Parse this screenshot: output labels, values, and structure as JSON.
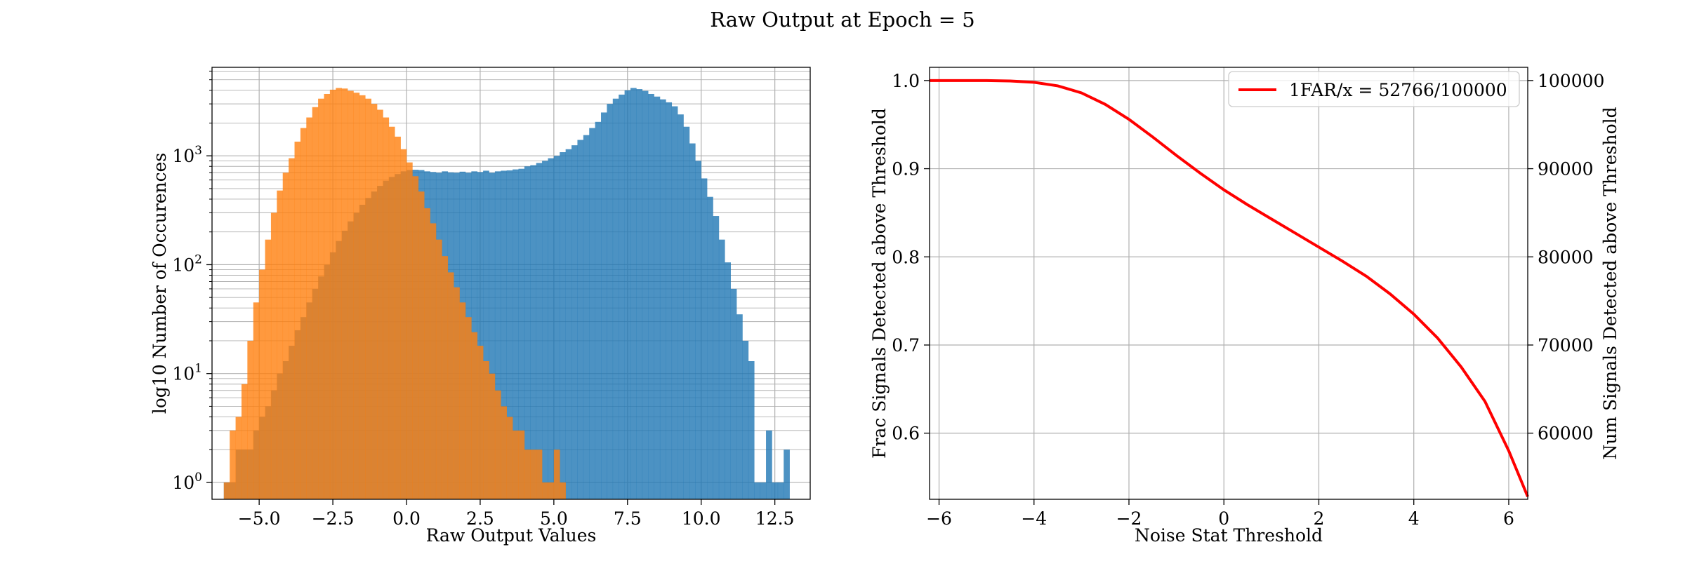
{
  "figure": {
    "title": "Raw Output at Epoch = 5"
  },
  "colors": {
    "blue": "#1f77b4",
    "orange": "#ff7f0e",
    "red": "#ff0000",
    "grid": "#b0b0b0"
  },
  "chart_data": [
    {
      "type": "histogram",
      "xlabel": "Raw Output Values",
      "ylabel": "log10 Number of Occurences",
      "xlim": [
        -6.6,
        13.7
      ],
      "ylim": [
        0.7,
        6500
      ],
      "yscale": "log",
      "grid": true,
      "xticks": [
        -5,
        -2.5,
        0,
        2.5,
        5,
        7.5,
        10,
        12.5
      ],
      "xtick_labels": [
        "−5.0",
        "−2.5",
        "0.0",
        "2.5",
        "5.0",
        "7.5",
        "10.0",
        "12.5"
      ],
      "yticks": [
        1,
        10,
        100,
        1000
      ],
      "ytick_labels": [
        {
          "base": "10",
          "exp": "0"
        },
        {
          "base": "10",
          "exp": "1"
        },
        {
          "base": "10",
          "exp": "2"
        },
        {
          "base": "10",
          "exp": "3"
        }
      ],
      "bin_width": 0.2,
      "series": [
        {
          "color": "#1f77b4",
          "alpha": 0.8,
          "bins": [
            [
              -6.2,
              1
            ],
            [
              -6.0,
              1
            ],
            [
              -5.8,
              2
            ],
            [
              -5.6,
              2
            ],
            [
              -5.4,
              2
            ],
            [
              -5.2,
              3
            ],
            [
              -5.0,
              4
            ],
            [
              -4.8,
              5
            ],
            [
              -4.6,
              7
            ],
            [
              -4.4,
              10
            ],
            [
              -4.2,
              13
            ],
            [
              -4.0,
              18
            ],
            [
              -3.8,
              25
            ],
            [
              -3.6,
              33
            ],
            [
              -3.4,
              45
            ],
            [
              -3.2,
              60
            ],
            [
              -3.0,
              78
            ],
            [
              -2.8,
              100
            ],
            [
              -2.6,
              130
            ],
            [
              -2.4,
              165
            ],
            [
              -2.2,
              205
            ],
            [
              -2.0,
              250
            ],
            [
              -1.8,
              300
            ],
            [
              -1.6,
              355
            ],
            [
              -1.4,
              410
            ],
            [
              -1.2,
              470
            ],
            [
              -1.0,
              530
            ],
            [
              -0.8,
              590
            ],
            [
              -0.6,
              640
            ],
            [
              -0.4,
              680
            ],
            [
              -0.2,
              720
            ],
            [
              0.0,
              740
            ],
            [
              0.2,
              745
            ],
            [
              0.4,
              740
            ],
            [
              0.6,
              720
            ],
            [
              0.8,
              710
            ],
            [
              1.0,
              700
            ],
            [
              1.2,
              720
            ],
            [
              1.4,
              705
            ],
            [
              1.6,
              700
            ],
            [
              1.8,
              715
            ],
            [
              2.0,
              700
            ],
            [
              2.2,
              720
            ],
            [
              2.4,
              710
            ],
            [
              2.6,
              730
            ],
            [
              2.8,
              700
            ],
            [
              3.0,
              720
            ],
            [
              3.2,
              730
            ],
            [
              3.4,
              735
            ],
            [
              3.6,
              750
            ],
            [
              3.8,
              760
            ],
            [
              4.0,
              800
            ],
            [
              4.2,
              820
            ],
            [
              4.4,
              860
            ],
            [
              4.6,
              900
            ],
            [
              4.8,
              950
            ],
            [
              5.0,
              1000
            ],
            [
              5.2,
              1080
            ],
            [
              5.4,
              1150
            ],
            [
              5.6,
              1250
            ],
            [
              5.8,
              1400
            ],
            [
              6.0,
              1550
            ],
            [
              6.2,
              1800
            ],
            [
              6.4,
              2050
            ],
            [
              6.6,
              2500
            ],
            [
              6.8,
              3000
            ],
            [
              7.0,
              3350
            ],
            [
              7.2,
              3650
            ],
            [
              7.4,
              4000
            ],
            [
              7.6,
              4200
            ],
            [
              7.8,
              4100
            ],
            [
              8.0,
              3950
            ],
            [
              8.2,
              3700
            ],
            [
              8.4,
              3500
            ],
            [
              8.6,
              3300
            ],
            [
              8.8,
              3100
            ],
            [
              9.0,
              2850
            ],
            [
              9.2,
              2400
            ],
            [
              9.4,
              1850
            ],
            [
              9.6,
              1300
            ],
            [
              9.8,
              900
            ],
            [
              10.0,
              620
            ],
            [
              10.2,
              420
            ],
            [
              10.4,
              280
            ],
            [
              10.6,
              170
            ],
            [
              10.8,
              105
            ],
            [
              11.0,
              60
            ],
            [
              11.2,
              35
            ],
            [
              11.4,
              20
            ],
            [
              11.6,
              13
            ],
            [
              11.8,
              1
            ],
            [
              12.0,
              1
            ],
            [
              12.2,
              3
            ],
            [
              12.4,
              1
            ],
            [
              12.6,
              1
            ],
            [
              12.8,
              2
            ]
          ]
        },
        {
          "color": "#ff7f0e",
          "alpha": 0.8,
          "bins": [
            [
              -6.2,
              1
            ],
            [
              -6.0,
              3
            ],
            [
              -5.8,
              4
            ],
            [
              -5.6,
              8
            ],
            [
              -5.4,
              20
            ],
            [
              -5.2,
              45
            ],
            [
              -5.0,
              90
            ],
            [
              -4.8,
              170
            ],
            [
              -4.6,
              300
            ],
            [
              -4.4,
              480
            ],
            [
              -4.2,
              700
            ],
            [
              -4.0,
              950
            ],
            [
              -3.8,
              1350
            ],
            [
              -3.6,
              1800
            ],
            [
              -3.4,
              2250
            ],
            [
              -3.2,
              2800
            ],
            [
              -3.0,
              3350
            ],
            [
              -2.8,
              3700
            ],
            [
              -2.6,
              4050
            ],
            [
              -2.4,
              4200
            ],
            [
              -2.2,
              4150
            ],
            [
              -2.0,
              3950
            ],
            [
              -1.8,
              3800
            ],
            [
              -1.6,
              3600
            ],
            [
              -1.4,
              3350
            ],
            [
              -1.2,
              3000
            ],
            [
              -1.0,
              2650
            ],
            [
              -0.8,
              2250
            ],
            [
              -0.6,
              1850
            ],
            [
              -0.4,
              1500
            ],
            [
              -0.2,
              1150
            ],
            [
              0.0,
              870
            ],
            [
              0.2,
              650
            ],
            [
              0.4,
              470
            ],
            [
              0.6,
              330
            ],
            [
              0.8,
              240
            ],
            [
              1.0,
              170
            ],
            [
              1.2,
              120
            ],
            [
              1.4,
              85
            ],
            [
              1.6,
              62
            ],
            [
              1.8,
              45
            ],
            [
              2.0,
              33
            ],
            [
              2.2,
              24
            ],
            [
              2.4,
              18
            ],
            [
              2.6,
              13
            ],
            [
              2.8,
              10
            ],
            [
              3.0,
              7
            ],
            [
              3.2,
              5
            ],
            [
              3.4,
              4
            ],
            [
              3.6,
              3
            ],
            [
              3.8,
              3
            ],
            [
              4.0,
              2
            ],
            [
              4.2,
              2
            ],
            [
              4.4,
              2
            ],
            [
              4.6,
              1
            ],
            [
              4.8,
              1
            ],
            [
              5.0,
              2
            ],
            [
              5.2,
              1
            ]
          ]
        }
      ]
    },
    {
      "type": "line",
      "xlabel": "Noise Stat Threshold",
      "ylabel": "Frac Signals Detected above Threshold",
      "ylabel_right": "Num Signals Detected above Threshold",
      "xlim": [
        -6.2,
        6.4
      ],
      "ylim": [
        0.525,
        1.015
      ],
      "ylim_right": [
        52500,
        101500
      ],
      "grid": true,
      "legend": "top-right",
      "xticks": [
        -6,
        -4,
        -2,
        0,
        2,
        4,
        6
      ],
      "xtick_labels": [
        "−6",
        "−4",
        "−2",
        "0",
        "2",
        "4",
        "6"
      ],
      "yticks": [
        0.6,
        0.7,
        0.8,
        0.9,
        1.0
      ],
      "ytick_labels": [
        "0.6",
        "0.7",
        "0.8",
        "0.9",
        "1.0"
      ],
      "yticks_right": [
        60000,
        70000,
        80000,
        90000,
        100000
      ],
      "ytick_labels_right": [
        "60000",
        "70000",
        "80000",
        "90000",
        "100000"
      ],
      "series": [
        {
          "name": "1FAR/x = 52766/100000",
          "color": "#ff0000",
          "x": [
            -6.2,
            -5.5,
            -5.0,
            -4.5,
            -4.0,
            -3.5,
            -3.0,
            -2.5,
            -2.0,
            -1.5,
            -1.0,
            -0.5,
            0.0,
            0.5,
            1.0,
            1.5,
            2.0,
            2.5,
            3.0,
            3.5,
            4.0,
            4.5,
            5.0,
            5.5,
            6.0,
            6.4
          ],
          "y": [
            1.0,
            1.0,
            1.0,
            0.9995,
            0.998,
            0.994,
            0.986,
            0.973,
            0.956,
            0.936,
            0.915,
            0.895,
            0.876,
            0.859,
            0.843,
            0.827,
            0.811,
            0.795,
            0.778,
            0.758,
            0.735,
            0.708,
            0.675,
            0.636,
            0.58,
            0.528
          ]
        }
      ]
    }
  ]
}
